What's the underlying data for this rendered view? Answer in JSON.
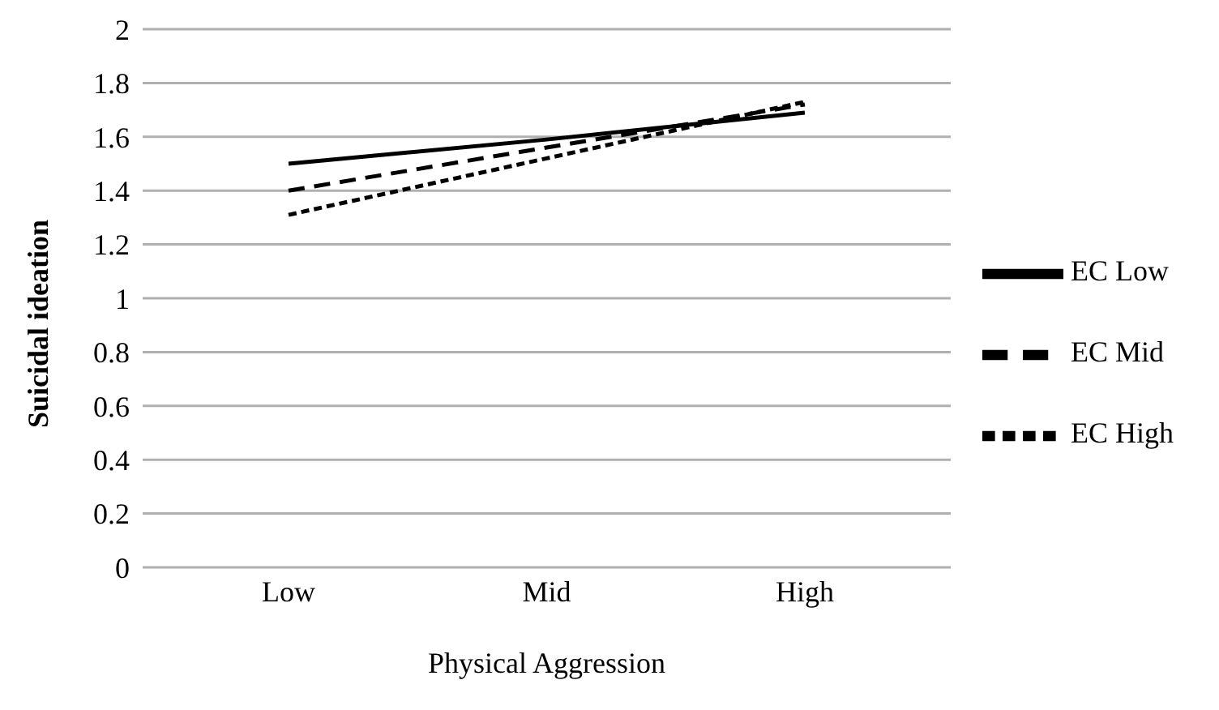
{
  "chart_data": {
    "type": "line",
    "xlabel": "Physical Aggression",
    "ylabel": "Suicidal ideation",
    "categories": [
      "Low",
      "Mid",
      "High"
    ],
    "ylim": [
      0,
      2
    ],
    "yticks": [
      0,
      0.2,
      0.4,
      0.6,
      0.8,
      1,
      1.2,
      1.4,
      1.6,
      1.8,
      2
    ],
    "grid": "y",
    "legend": "right",
    "marker": "none",
    "series": [
      {
        "name": "EC Low",
        "color": "#000000",
        "line_style": "solid",
        "values": [
          1.5,
          1.59,
          1.69
        ]
      },
      {
        "name": "EC Mid",
        "color": "#000000",
        "line_style": "dashed",
        "values": [
          1.4,
          1.56,
          1.72
        ]
      },
      {
        "name": "EC High",
        "color": "#000000",
        "line_style": "dotted",
        "values": [
          1.31,
          1.52,
          1.73
        ]
      }
    ]
  }
}
